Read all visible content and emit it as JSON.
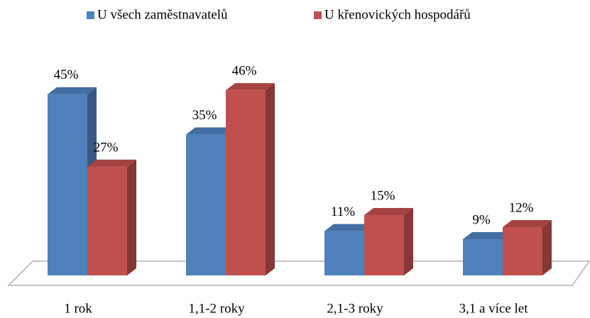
{
  "chart_data": {
    "type": "bar3d",
    "categories": [
      "1 rok",
      "1,1-2 roky",
      "2,1-3 roky",
      "3,1 a více let"
    ],
    "series": [
      {
        "name": "U všech zaměstnavatelů",
        "color": "#4f81bd",
        "values": [
          45,
          35,
          11,
          9
        ],
        "value_labels": [
          "45%",
          "35%",
          "11%",
          "9%"
        ]
      },
      {
        "name": "U křenovických hospodářů",
        "color": "#c0504d",
        "values": [
          27,
          46,
          15,
          12
        ],
        "value_labels": [
          "27%",
          "46%",
          "15%",
          "12%"
        ]
      }
    ],
    "legend": "top"
  }
}
